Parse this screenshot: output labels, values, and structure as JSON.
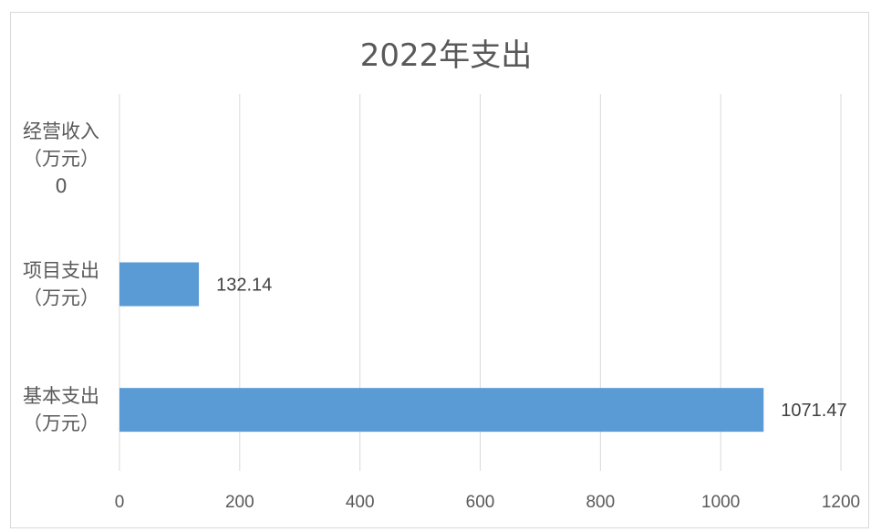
{
  "chart_data": {
    "type": "bar",
    "orientation": "horizontal",
    "title": "2022年支出",
    "categories": [
      [
        "经营收入",
        "（万元）",
        "0"
      ],
      [
        "项目支出",
        "（万元）"
      ],
      [
        "基本支出",
        "（万元）"
      ]
    ],
    "values": [
      0,
      132.14,
      1071.47
    ],
    "data_labels": [
      "",
      "132.14",
      "1071.47"
    ],
    "xlim": [
      0,
      1200
    ],
    "x_ticks": [
      "0",
      "200",
      "400",
      "600",
      "800",
      "1000",
      "1200"
    ],
    "grid": true,
    "bar_color": "#5b9bd5"
  }
}
